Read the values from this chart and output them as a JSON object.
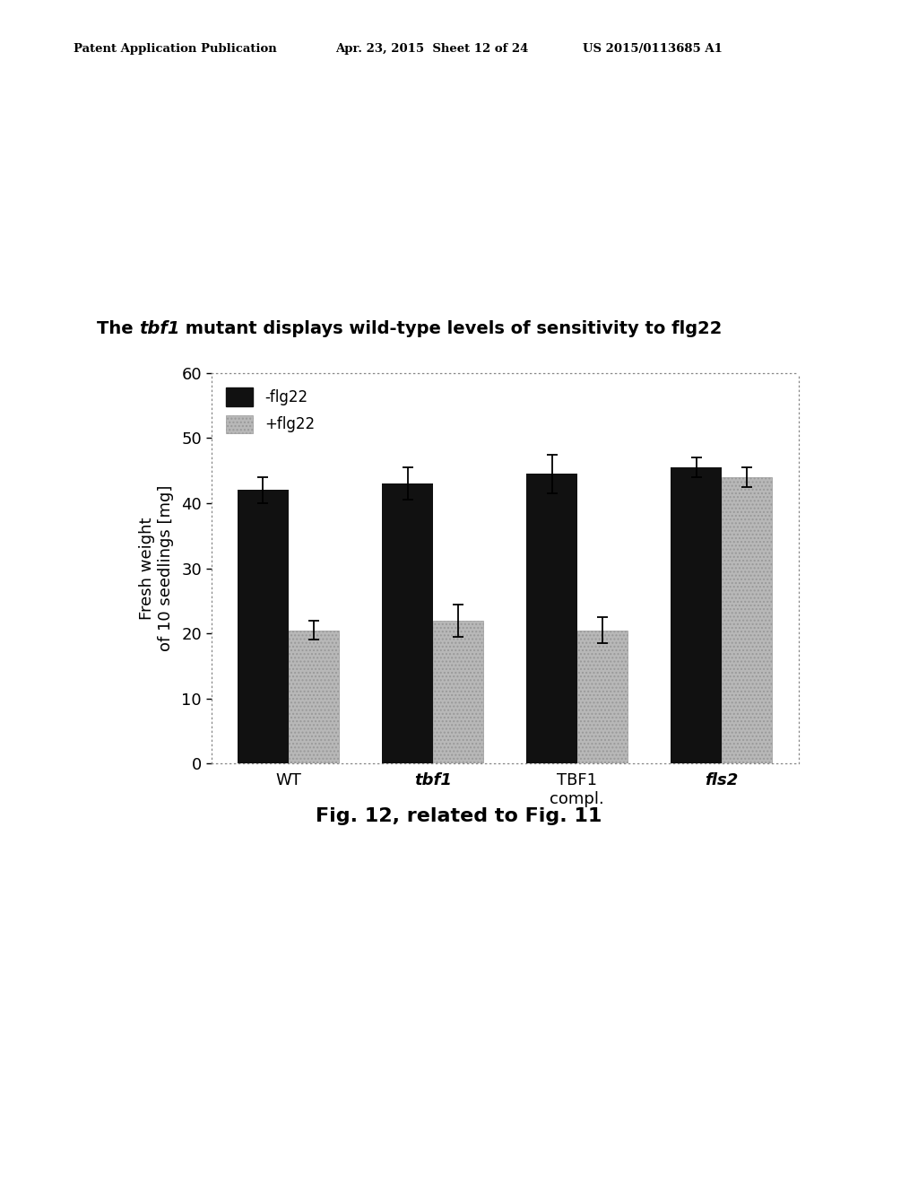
{
  "categories": [
    "WT",
    "tbf1",
    "TBF1\ncompl.",
    "fls2"
  ],
  "italic_idx": [
    1,
    3
  ],
  "black_values": [
    42.0,
    43.0,
    44.5,
    45.5
  ],
  "gray_values": [
    20.5,
    22.0,
    20.5,
    44.0
  ],
  "black_errors": [
    2.0,
    2.5,
    3.0,
    1.5
  ],
  "gray_errors": [
    1.5,
    2.5,
    2.0,
    1.5
  ],
  "black_color": "#111111",
  "gray_color": "#b8b8b8",
  "gray_hatch": "....",
  "ylim": [
    0,
    60
  ],
  "yticks": [
    0,
    10,
    20,
    30,
    40,
    50,
    60
  ],
  "ylabel": "Fresh weight\nof 10 seedlings [mg]",
  "legend_labels": [
    "-flg22",
    "+flg22"
  ],
  "title_parts": [
    "The ",
    "tbf1",
    " mutant displays wild-type levels of sensitivity to flg22"
  ],
  "title_italic": [
    false,
    true,
    false
  ],
  "caption": "Fig. 12, related to Fig. 11",
  "header_left": "Patent Application Publication",
  "header_mid": "Apr. 23, 2015  Sheet 12 of 24",
  "header_right": "US 2015/0113685 A1",
  "bar_width": 0.35
}
